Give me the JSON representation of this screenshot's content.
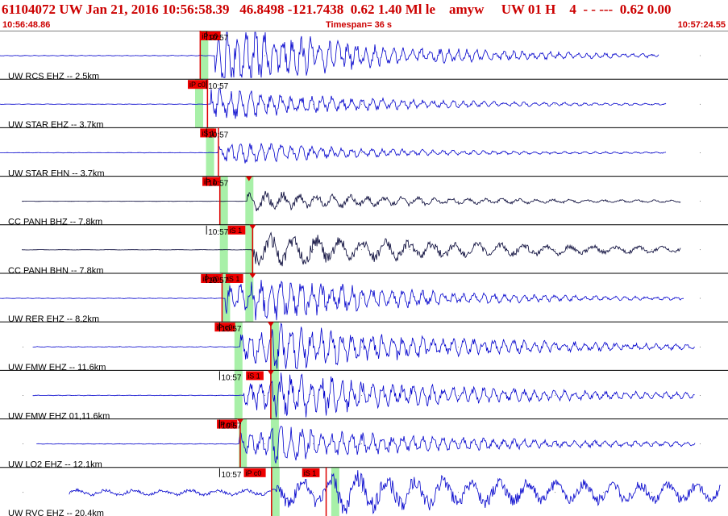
{
  "header": {
    "event_line": "61104072 UW Jan 21, 2016 10:56:58.39   46.8498 -121.7438  0.62 1.40 Ml le    amyw     UW 01 H    4  - - ---  0.62 0.00",
    "start_time": "10:56:48.86",
    "timespan": "Timespan=  36 s",
    "end_time": "10:57:24.55"
  },
  "colors": {
    "header_text": "#cc0000",
    "trace_blue": "#0000cc",
    "trace_black": "#000033",
    "pick_flag": "#ee0000",
    "pick_window": "#a8f0a8"
  },
  "minute_label": "10:57",
  "traces": [
    {
      "label": "UW RCS EHZ -- 2.5km",
      "color": "blue",
      "pre": 0.05,
      "amp": 1.6,
      "decay": 5,
      "freq": 0.55,
      "onset": 0.295,
      "s": 0.0,
      "end": 0.905,
      "start": 0.0,
      "tick": 0.297,
      "picks": [
        {
          "text": "iP c0",
          "x": 0.275,
          "w": 0.028
        }
      ],
      "windows": [
        0.275
      ],
      "red": [
        0.275
      ],
      "tri": []
    },
    {
      "label": "UW STAR EHZ -- 3.7km",
      "color": "blue",
      "pre": 0.04,
      "amp": 0.8,
      "decay": 5,
      "freq": 0.5,
      "onset": 0.29,
      "s": 0.0,
      "end": 0.915,
      "start": 0.0,
      "tick": 0.297,
      "picks": [
        {
          "text": "iP c0",
          "x": 0.258,
          "w": 0.028
        }
      ],
      "windows": [
        0.268
      ],
      "red": [
        0.285
      ],
      "tri": []
    },
    {
      "label": "UW STAR EHN -- 3.7km",
      "color": "blue",
      "pre": 0.04,
      "amp": 0.55,
      "decay": 5,
      "freq": 0.5,
      "onset": 0.3,
      "s": 0.0,
      "end": 0.915,
      "start": 0.0,
      "tick": 0.297,
      "picks": [
        {
          "text": "iS 1",
          "x": 0.275,
          "w": 0.022
        }
      ],
      "windows": [
        0.283
      ],
      "red": [
        0.3
      ],
      "tri": []
    },
    {
      "label": "CC PANH BHZ -- 7.8km",
      "color": "black",
      "pre": 0.03,
      "amp": 0.5,
      "decay": 4,
      "freq": 0.3,
      "onset": 0.34,
      "s": 0.0,
      "end": 0.935,
      "start": 0.03,
      "tick": 0.297,
      "picks": [
        {
          "text": "iP 1",
          "x": 0.278,
          "w": 0.024
        }
      ],
      "windows": [
        0.302,
        0.337
      ],
      "red": [
        0.302
      ],
      "tri": [
        0.342
      ]
    },
    {
      "label": "CC PANH BHN -- 7.8km",
      "color": "black",
      "pre": 0.03,
      "amp": 0.85,
      "decay": 3,
      "freq": 0.22,
      "onset": 0.345,
      "s": 0.0,
      "end": 0.935,
      "start": 0.03,
      "tick": 0.297,
      "picks": [
        {
          "text": "iS 1",
          "x": 0.313,
          "w": 0.024
        }
      ],
      "windows": [
        0.302,
        0.337
      ],
      "red": [
        0.347
      ],
      "tri": [
        0.347
      ]
    },
    {
      "label": "UW RER EHZ -- 8.2km",
      "color": "blue",
      "pre": 0.04,
      "amp": 0.75,
      "decay": 4,
      "freq": 0.5,
      "onset": 0.31,
      "s": 0.345,
      "end": 0.94,
      "start": 0.0,
      "tick": 0.297,
      "picks": [
        {
          "text": "iP d0",
          "x": 0.276,
          "w": 0.028
        },
        {
          "text": "iS 1",
          "x": 0.31,
          "w": 0.024
        }
      ],
      "windows": [
        0.305,
        0.337
      ],
      "red": [
        0.305
      ],
      "tri": [
        0.347
      ]
    },
    {
      "label": "UW FMW EHZ -- 11.6km",
      "color": "blue",
      "pre": 0.05,
      "amp": 0.75,
      "decay": 3,
      "freq": 0.5,
      "onset": 0.33,
      "s": 0.372,
      "end": 0.955,
      "start": 0.045,
      "tick": 0.315,
      "picks": [
        {
          "text": "iP c0",
          "x": 0.295,
          "w": 0.028
        }
      ],
      "windows": [
        0.322,
        0.372
      ],
      "red": [
        0.372
      ],
      "tri": [
        0.372
      ]
    },
    {
      "label": "UW FMW EHZ 01,11.6km",
      "color": "blue",
      "pre": 0.05,
      "amp": 0.75,
      "decay": 3,
      "freq": 0.5,
      "onset": 0.335,
      "s": 0.372,
      "end": 0.955,
      "start": 0.045,
      "tick": 0.315,
      "picks": [
        {
          "text": "iS 1",
          "x": 0.338,
          "w": 0.024
        }
      ],
      "windows": [
        0.322,
        0.372
      ],
      "red": [
        0.372
      ],
      "tri": [
        0.372
      ]
    },
    {
      "label": "UW LO2 EHZ -- 12.1km",
      "color": "blue",
      "pre": 0.05,
      "amp": 0.55,
      "decay": 3,
      "freq": 0.5,
      "onset": 0.328,
      "s": 0.372,
      "end": 0.955,
      "start": 0.05,
      "tick": 0.315,
      "picks": [
        {
          "text": "iP c0",
          "x": 0.298,
          "w": 0.028
        }
      ],
      "windows": [
        0.328,
        0.372
      ],
      "red": [
        0.33
      ],
      "tri": [
        0.33
      ]
    },
    {
      "label": "UW RVC EHZ -- 20.4km",
      "color": "blue",
      "pre": 0.55,
      "amp": 0.55,
      "decay": 1,
      "freq": 0.18,
      "onset": 0.38,
      "s": 0.45,
      "end": 0.99,
      "start": 0.095,
      "tick": 0.315,
      "picks": [
        {
          "text": "iP c0",
          "x": 0.335,
          "w": 0.03
        },
        {
          "text": "iS 1",
          "x": 0.415,
          "w": 0.024
        }
      ],
      "windows": [
        0.373,
        0.455
      ],
      "red": [
        0.373,
        0.448
      ],
      "tri": []
    }
  ]
}
